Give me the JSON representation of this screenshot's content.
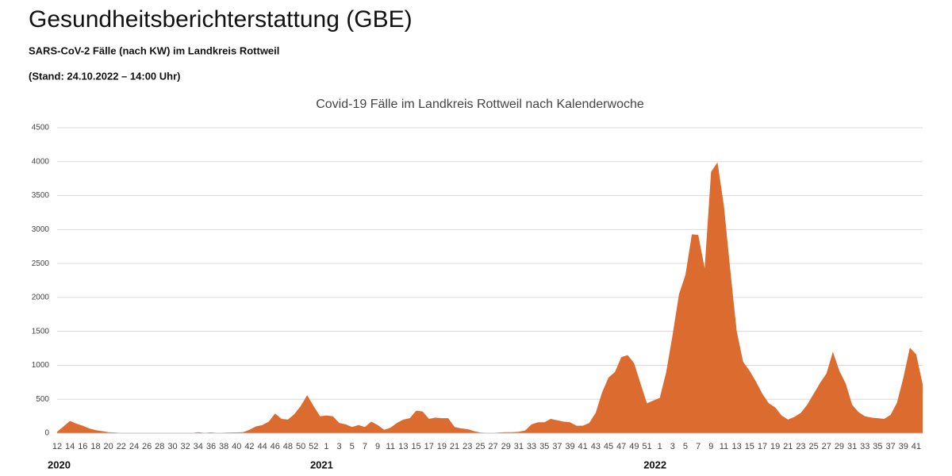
{
  "header": {
    "title": "Gesundheitsberichterstattung (GBE)",
    "subtitle": "SARS-CoV-2 Fälle (nach KW) im Landkreis Rottweil",
    "date": "(Stand: 24.10.2022 – 14:00 Uhr)"
  },
  "chart_data": {
    "type": "area",
    "title": "Covid-19 Fälle im Landkreis Rottweil nach Kalenderwoche",
    "color": "#dc6b2f",
    "years": [
      "2020",
      "2021",
      "2022"
    ],
    "categories": [
      "12",
      null,
      "14",
      null,
      "16",
      null,
      "18",
      null,
      "20",
      null,
      "22",
      null,
      "24",
      null,
      "26",
      null,
      "28",
      null,
      "30",
      null,
      "32",
      null,
      "34",
      null,
      "36",
      null,
      "38",
      null,
      "40",
      null,
      "42",
      null,
      "44",
      null,
      "46",
      null,
      "48",
      null,
      "50",
      null,
      "52",
      null,
      "1",
      null,
      "3",
      null,
      "5",
      null,
      "7",
      null,
      "9",
      null,
      "11",
      null,
      "13",
      null,
      "15",
      null,
      "17",
      null,
      "19",
      null,
      "21",
      null,
      "23",
      null,
      "25",
      null,
      "27",
      null,
      "29",
      null,
      "31",
      null,
      "33",
      null,
      "35",
      null,
      "37",
      null,
      "39",
      null,
      "41",
      null,
      "43",
      null,
      "45",
      null,
      "47",
      null,
      "49",
      null,
      "51",
      null,
      "1",
      null,
      "3",
      null,
      "5",
      null,
      "7",
      null,
      "9",
      null,
      "11",
      null,
      "13",
      null,
      "15",
      null,
      "17",
      null,
      "19",
      null,
      "21",
      null,
      "23",
      null,
      "25",
      null,
      "27",
      null,
      "29",
      null,
      "31",
      null,
      "33",
      null,
      "35",
      null,
      "37",
      null,
      "39",
      null,
      "41",
      null
    ],
    "values": [
      20,
      100,
      180,
      140,
      110,
      70,
      45,
      30,
      15,
      10,
      3,
      3,
      3,
      3,
      3,
      3,
      3,
      3,
      3,
      3,
      3,
      3,
      15,
      5,
      12,
      5,
      8,
      10,
      12,
      15,
      50,
      100,
      120,
      170,
      290,
      210,
      200,
      280,
      400,
      560,
      400,
      250,
      260,
      250,
      150,
      130,
      90,
      120,
      90,
      170,
      120,
      50,
      80,
      150,
      200,
      220,
      330,
      320,
      210,
      230,
      220,
      220,
      90,
      70,
      60,
      30,
      10,
      5,
      5,
      10,
      15,
      15,
      20,
      40,
      130,
      160,
      160,
      210,
      190,
      170,
      160,
      110,
      110,
      150,
      300,
      600,
      820,
      900,
      1120,
      1150,
      1030,
      730,
      440,
      480,
      520,
      900,
      1450,
      2050,
      2330,
      2930,
      2920,
      2430,
      3850,
      3990,
      3350,
      2400,
      1500,
      1050,
      920,
      760,
      580,
      440,
      380,
      260,
      200,
      240,
      300,
      420,
      580,
      740,
      880,
      1200,
      920,
      730,
      420,
      310,
      250,
      230,
      220,
      210,
      270,
      450,
      820,
      1260,
      1160,
      720
    ],
    "ylim": [
      0,
      4500
    ],
    "yticks": [
      0,
      500,
      1000,
      1500,
      2000,
      2500,
      3000,
      3500,
      4000,
      4500
    ],
    "grid": true
  }
}
